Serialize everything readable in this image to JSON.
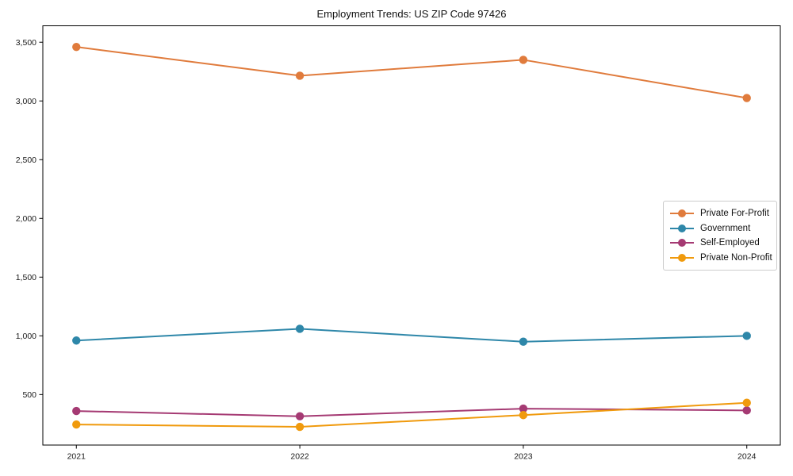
{
  "chart_data": {
    "type": "line",
    "title": "Employment Trends: US ZIP Code 97426",
    "xlabel": "",
    "ylabel": "",
    "x": [
      2021,
      2022,
      2023,
      2024
    ],
    "xticks": [
      2021,
      2022,
      2023,
      2024
    ],
    "yticks": [
      500,
      1000,
      1500,
      2000,
      2500,
      3000,
      3500
    ],
    "xlim": [
      2020.85,
      2024.15
    ],
    "ylim": [
      70,
      3640
    ],
    "grid": false,
    "background": "#ffffff",
    "spine_color": "#000000",
    "text_color": "#1a1a1a",
    "legend": {
      "position": "center right",
      "border_color": "#cccccc",
      "background": "#ffffff"
    },
    "series": [
      {
        "name": "Private For-Profit",
        "color": "#E07B3C",
        "values": [
          3460,
          3215,
          3350,
          3025
        ]
      },
      {
        "name": "Government",
        "color": "#2E87A9",
        "values": [
          960,
          1060,
          950,
          1000
        ]
      },
      {
        "name": "Self-Employed",
        "color": "#A53A73",
        "values": [
          360,
          315,
          380,
          365
        ]
      },
      {
        "name": "Private Non-Profit",
        "color": "#F09A0D",
        "values": [
          245,
          225,
          325,
          430
        ]
      }
    ]
  }
}
